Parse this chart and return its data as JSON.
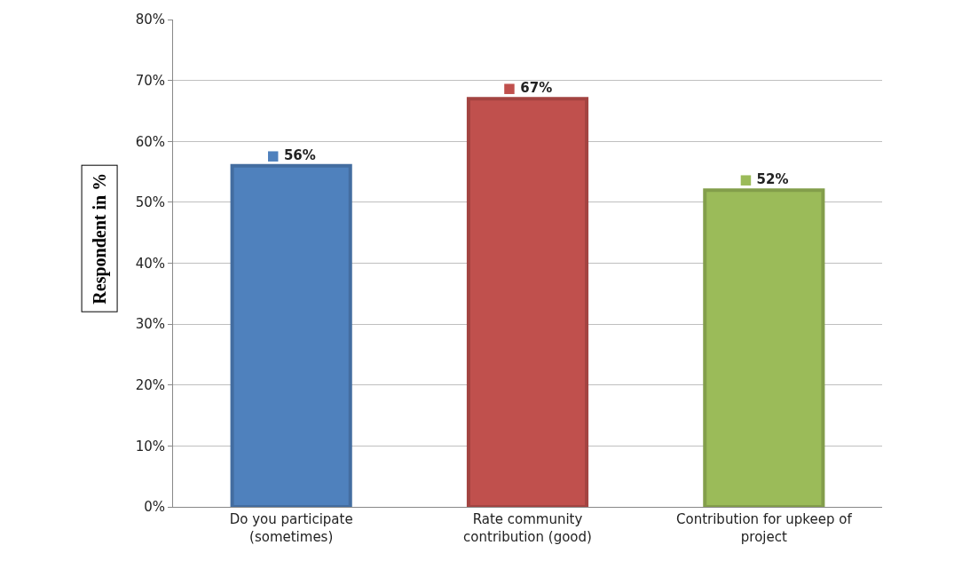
{
  "chart_data": {
    "type": "bar",
    "ylabel": "Respondent in %",
    "categories": [
      "Do you participate (sometimes)",
      "Rate community contribution (good)",
      "Contribution for upkeep of project"
    ],
    "values": [
      56,
      67,
      52
    ],
    "colors": [
      "#4f81bd",
      "#c0504d",
      "#9bbb59"
    ],
    "value_labels": [
      "■ 56%",
      "■ 67%",
      "■ 52%"
    ],
    "ylim": [
      0,
      80
    ],
    "yticks": [
      {
        "value": 0,
        "label": "0%"
      },
      {
        "value": 10,
        "label": "10%"
      },
      {
        "value": 20,
        "label": "20%"
      },
      {
        "value": 30,
        "label": "30%"
      },
      {
        "value": 40,
        "label": "40%"
      },
      {
        "value": 50,
        "label": "50%"
      },
      {
        "value": 60,
        "label": "60%"
      },
      {
        "value": 70,
        "label": "70%"
      },
      {
        "value": 80,
        "label": "80%"
      }
    ],
    "grid": "y"
  }
}
